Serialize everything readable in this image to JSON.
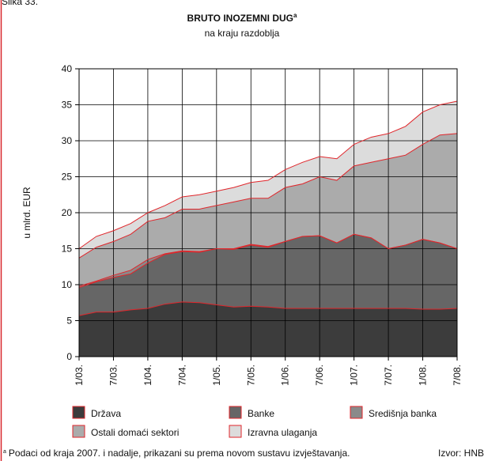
{
  "figure_label": "Slika 33.",
  "chart_data": {
    "type": "stacked_area",
    "title": "BRUTO INOZEMNI DUG",
    "title_marker": "a",
    "subtitle": "na kraju razdoblja",
    "y_label": "u mlrd. EUR",
    "categories": [
      "1/03.",
      null,
      "7/03.",
      null,
      "1/04.",
      null,
      "7/04.",
      null,
      "1/05.",
      null,
      "7/05.",
      null,
      "1/06.",
      null,
      "7/06.",
      null,
      "1/07.",
      null,
      "7/07.",
      null,
      "1/08.",
      null,
      "7/08."
    ],
    "series": [
      {
        "name": "Država",
        "color": "#3c3c3c",
        "values": [
          5.7,
          6.2,
          6.2,
          6.5,
          6.7,
          7.3,
          7.6,
          7.5,
          7.2,
          6.9,
          7.0,
          6.9,
          6.7,
          6.7,
          6.7,
          6.7,
          6.7,
          6.7,
          6.7,
          6.7,
          6.6,
          6.6,
          6.7
        ]
      },
      {
        "name": "Banke",
        "color": "#666666",
        "values": [
          3.9,
          4.2,
          4.8,
          5.0,
          6.3,
          6.9,
          7.0,
          7.0,
          7.8,
          8.0,
          8.5,
          8.3,
          9.3,
          10.0,
          10.1,
          9.1,
          10.3,
          9.8,
          8.3,
          8.8,
          9.7,
          9.2,
          8.3
        ]
      },
      {
        "name": "Središnja banka",
        "color": "#8a8a8a",
        "values": [
          0.2,
          0.1,
          0.3,
          0.5,
          0.5,
          0.1,
          0.1,
          0.1,
          0,
          0.1,
          0.1,
          0.1,
          0,
          0,
          0,
          0,
          0,
          0,
          0,
          0,
          0,
          0,
          0
        ]
      },
      {
        "name": "Ostali domaći sektori",
        "color": "#ababab",
        "values": [
          3.9,
          4.7,
          4.7,
          5.0,
          5.3,
          5.0,
          5.8,
          5.9,
          6.0,
          6.5,
          6.4,
          6.7,
          7.5,
          7.3,
          8.2,
          8.7,
          9.5,
          10.5,
          12.5,
          12.5,
          13.2,
          15.0,
          16.0
        ]
      },
      {
        "name": "Izravna ulaganja",
        "color": "#dcdcdc",
        "values": [
          1.3,
          1.5,
          1.5,
          1.5,
          1.2,
          1.7,
          1.7,
          2.0,
          2.0,
          2.0,
          2.2,
          2.5,
          2.5,
          3.0,
          2.8,
          3.0,
          3.0,
          3.5,
          3.5,
          4.0,
          4.5,
          4.2,
          4.5
        ]
      }
    ],
    "line_color": "#e0262b",
    "ylim": [
      0,
      40
    ],
    "yticks": [
      0,
      5,
      10,
      15,
      20,
      25,
      30,
      35,
      40
    ],
    "grid": true,
    "legend": "bottom",
    "footnote": {
      "marker": "a",
      "text": "Podaci od kraja 2007. i nadalje, prikazani su prema novom sustavu izvještavanja."
    },
    "source": "Izvor: HNB"
  }
}
